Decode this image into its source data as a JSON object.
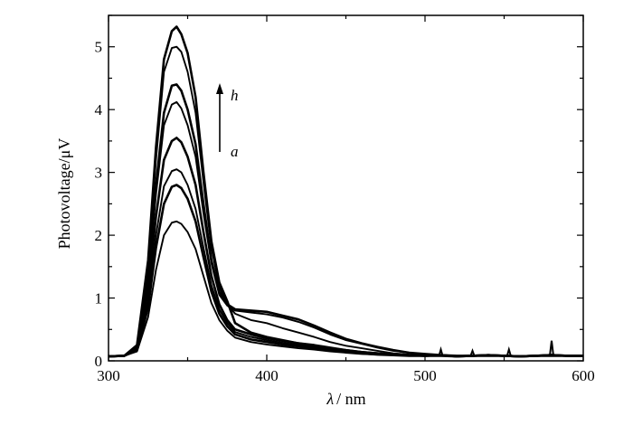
{
  "chart_data": {
    "type": "line",
    "xlabel_symbol": "λ",
    "xlabel_unit": "/ nm",
    "ylabel": "Photovoltage/μV",
    "xlim": [
      300,
      600
    ],
    "ylim": [
      0,
      5.5
    ],
    "x_ticks": [
      300,
      400,
      500,
      600
    ],
    "y_ticks": [
      0,
      1,
      2,
      3,
      4,
      5
    ],
    "grid": false,
    "legend": "none",
    "line_color": "#000000",
    "annotations": {
      "top": "h",
      "bottom": "a",
      "arrow": "up"
    },
    "x": [
      300,
      310,
      318,
      325,
      330,
      335,
      340,
      343,
      346,
      350,
      355,
      360,
      365,
      370,
      375,
      380,
      390,
      400,
      410,
      420,
      430,
      440,
      450,
      460,
      470,
      480,
      490,
      500,
      510,
      520,
      530,
      540,
      550,
      560,
      570,
      580,
      590,
      600
    ],
    "series": [
      {
        "values": [
          0.07,
          0.08,
          0.25,
          1.6,
          3.4,
          4.8,
          5.25,
          5.32,
          5.2,
          4.9,
          4.2,
          3.0,
          1.9,
          1.25,
          0.95,
          0.6,
          0.45,
          0.38,
          0.33,
          0.28,
          0.25,
          0.21,
          0.17,
          0.14,
          0.12,
          0.1,
          0.09,
          0.08,
          0.09,
          0.07,
          0.08,
          0.09,
          0.08,
          0.07,
          0.08,
          0.09,
          0.08,
          0.08
        ]
      },
      {
        "values": [
          0.07,
          0.08,
          0.24,
          1.5,
          3.2,
          4.6,
          4.98,
          5.0,
          4.92,
          4.6,
          3.95,
          2.85,
          1.8,
          1.18,
          0.9,
          0.75,
          0.65,
          0.6,
          0.52,
          0.45,
          0.38,
          0.3,
          0.24,
          0.2,
          0.16,
          0.12,
          0.1,
          0.09,
          0.08,
          0.07,
          0.08,
          0.09,
          0.08,
          0.07,
          0.08,
          0.1,
          0.08,
          0.08
        ]
      },
      {
        "values": [
          0.07,
          0.08,
          0.22,
          1.3,
          2.8,
          3.95,
          4.38,
          4.4,
          4.3,
          4.0,
          3.45,
          2.5,
          1.6,
          1.1,
          0.9,
          0.82,
          0.8,
          0.78,
          0.72,
          0.66,
          0.56,
          0.45,
          0.35,
          0.28,
          0.22,
          0.17,
          0.13,
          0.11,
          0.09,
          0.08,
          0.08,
          0.09,
          0.08,
          0.07,
          0.08,
          0.09,
          0.08,
          0.08
        ]
      },
      {
        "values": [
          0.07,
          0.08,
          0.21,
          1.25,
          2.65,
          3.75,
          4.08,
          4.12,
          4.02,
          3.75,
          3.25,
          2.35,
          1.55,
          1.05,
          0.88,
          0.8,
          0.77,
          0.74,
          0.69,
          0.62,
          0.53,
          0.42,
          0.33,
          0.27,
          0.21,
          0.16,
          0.13,
          0.1,
          0.09,
          0.08,
          0.08,
          0.09,
          0.08,
          0.07,
          0.08,
          0.09,
          0.08,
          0.08
        ]
      },
      {
        "values": [
          0.07,
          0.08,
          0.2,
          1.1,
          2.3,
          3.2,
          3.5,
          3.55,
          3.48,
          3.25,
          2.8,
          2.05,
          1.35,
          0.9,
          0.65,
          0.5,
          0.42,
          0.36,
          0.32,
          0.28,
          0.24,
          0.2,
          0.17,
          0.14,
          0.12,
          0.1,
          0.09,
          0.08,
          0.09,
          0.07,
          0.08,
          0.09,
          0.08,
          0.07,
          0.08,
          0.09,
          0.08,
          0.08
        ]
      },
      {
        "values": [
          0.07,
          0.08,
          0.18,
          0.95,
          2.0,
          2.78,
          3.02,
          3.05,
          3.0,
          2.8,
          2.42,
          1.8,
          1.2,
          0.82,
          0.6,
          0.46,
          0.38,
          0.33,
          0.29,
          0.25,
          0.22,
          0.18,
          0.15,
          0.13,
          0.11,
          0.1,
          0.09,
          0.08,
          0.08,
          0.07,
          0.08,
          0.09,
          0.08,
          0.07,
          0.08,
          0.09,
          0.08,
          0.08
        ]
      },
      {
        "values": [
          0.07,
          0.08,
          0.17,
          0.85,
          1.8,
          2.5,
          2.77,
          2.8,
          2.75,
          2.58,
          2.22,
          1.65,
          1.1,
          0.75,
          0.55,
          0.42,
          0.34,
          0.3,
          0.26,
          0.23,
          0.2,
          0.17,
          0.14,
          0.12,
          0.1,
          0.09,
          0.08,
          0.08,
          0.08,
          0.07,
          0.08,
          0.08,
          0.08,
          0.07,
          0.08,
          0.08,
          0.08,
          0.08
        ]
      },
      {
        "values": [
          0.07,
          0.08,
          0.15,
          0.7,
          1.45,
          2.0,
          2.2,
          2.22,
          2.18,
          2.05,
          1.78,
          1.35,
          0.92,
          0.65,
          0.48,
          0.37,
          0.3,
          0.26,
          0.23,
          0.2,
          0.18,
          0.15,
          0.13,
          0.11,
          0.1,
          0.09,
          0.08,
          0.08,
          0.08,
          0.07,
          0.08,
          0.08,
          0.08,
          0.07,
          0.08,
          0.08,
          0.08,
          0.08
        ]
      }
    ],
    "noise_spikes": [
      {
        "x": 510,
        "y": 0.18
      },
      {
        "x": 530,
        "y": 0.16
      },
      {
        "x": 553,
        "y": 0.18
      },
      {
        "x": 580,
        "y": 0.32
      }
    ]
  }
}
